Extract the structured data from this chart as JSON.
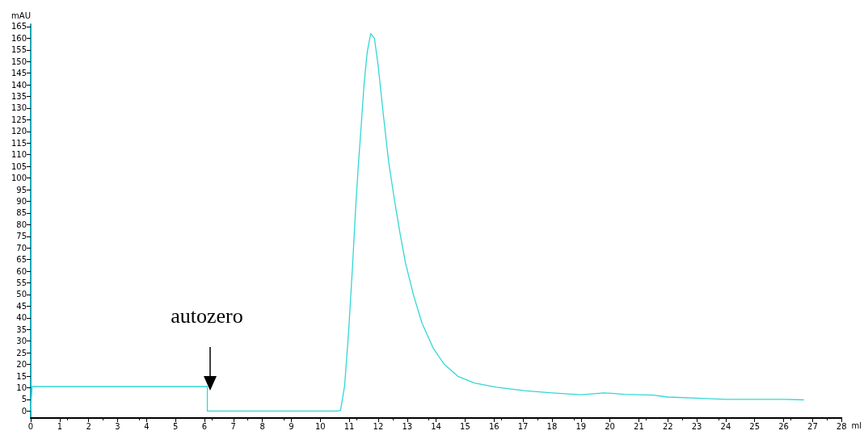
{
  "chart_data": {
    "type": "line",
    "xlabel": "ml",
    "ylabel": "mAU",
    "x": [
      0,
      0.02,
      0.05,
      6.1,
      6.1,
      8,
      10,
      10.6,
      10.7,
      10.84,
      10.98,
      11.12,
      11.22,
      11.31,
      11.41,
      11.51,
      11.62,
      11.74,
      11.87,
      12.0,
      12.17,
      12.36,
      12.56,
      12.75,
      12.94,
      13.22,
      13.51,
      13.89,
      14.27,
      14.75,
      15.32,
      16.09,
      17.05,
      18,
      19,
      19.8,
      20.5,
      21.5,
      22,
      23,
      24,
      25,
      26,
      26.7
    ],
    "series": [
      {
        "color": "#33d6d6",
        "values": [
          0,
          5,
          10.5,
          10.5,
          0,
          0,
          0,
          0,
          0.3,
          10.8,
          34.3,
          63.6,
          87,
          104.7,
          122,
          140,
          154,
          162,
          160,
          148,
          128,
          107,
          90.6,
          76.5,
          63.6,
          49.7,
          37.8,
          27.2,
          20.2,
          14.9,
          12,
          10.2,
          8.7,
          7.8,
          7,
          7.8,
          7.2,
          6.8,
          6,
          5.5,
          5,
          5,
          5,
          4.8
        ]
      }
    ],
    "xlim": [
      0,
      28
    ],
    "xticks": [
      0,
      1,
      2,
      3,
      4,
      5,
      6,
      7,
      8,
      9,
      10,
      11,
      12,
      13,
      14,
      15,
      16,
      17,
      18,
      19,
      20,
      21,
      22,
      23,
      24,
      25,
      26,
      27,
      28
    ],
    "ylim": [
      -3,
      166
    ],
    "yticks": [
      0,
      5,
      10,
      15,
      20,
      25,
      30,
      35,
      40,
      45,
      50,
      55,
      60,
      65,
      70,
      75,
      80,
      85,
      90,
      95,
      100,
      105,
      110,
      115,
      120,
      125,
      130,
      135,
      140,
      145,
      150,
      155,
      160,
      165
    ],
    "grid": false,
    "marker": "none",
    "line_style": "solid",
    "annotations": [
      "autozero"
    ]
  }
}
